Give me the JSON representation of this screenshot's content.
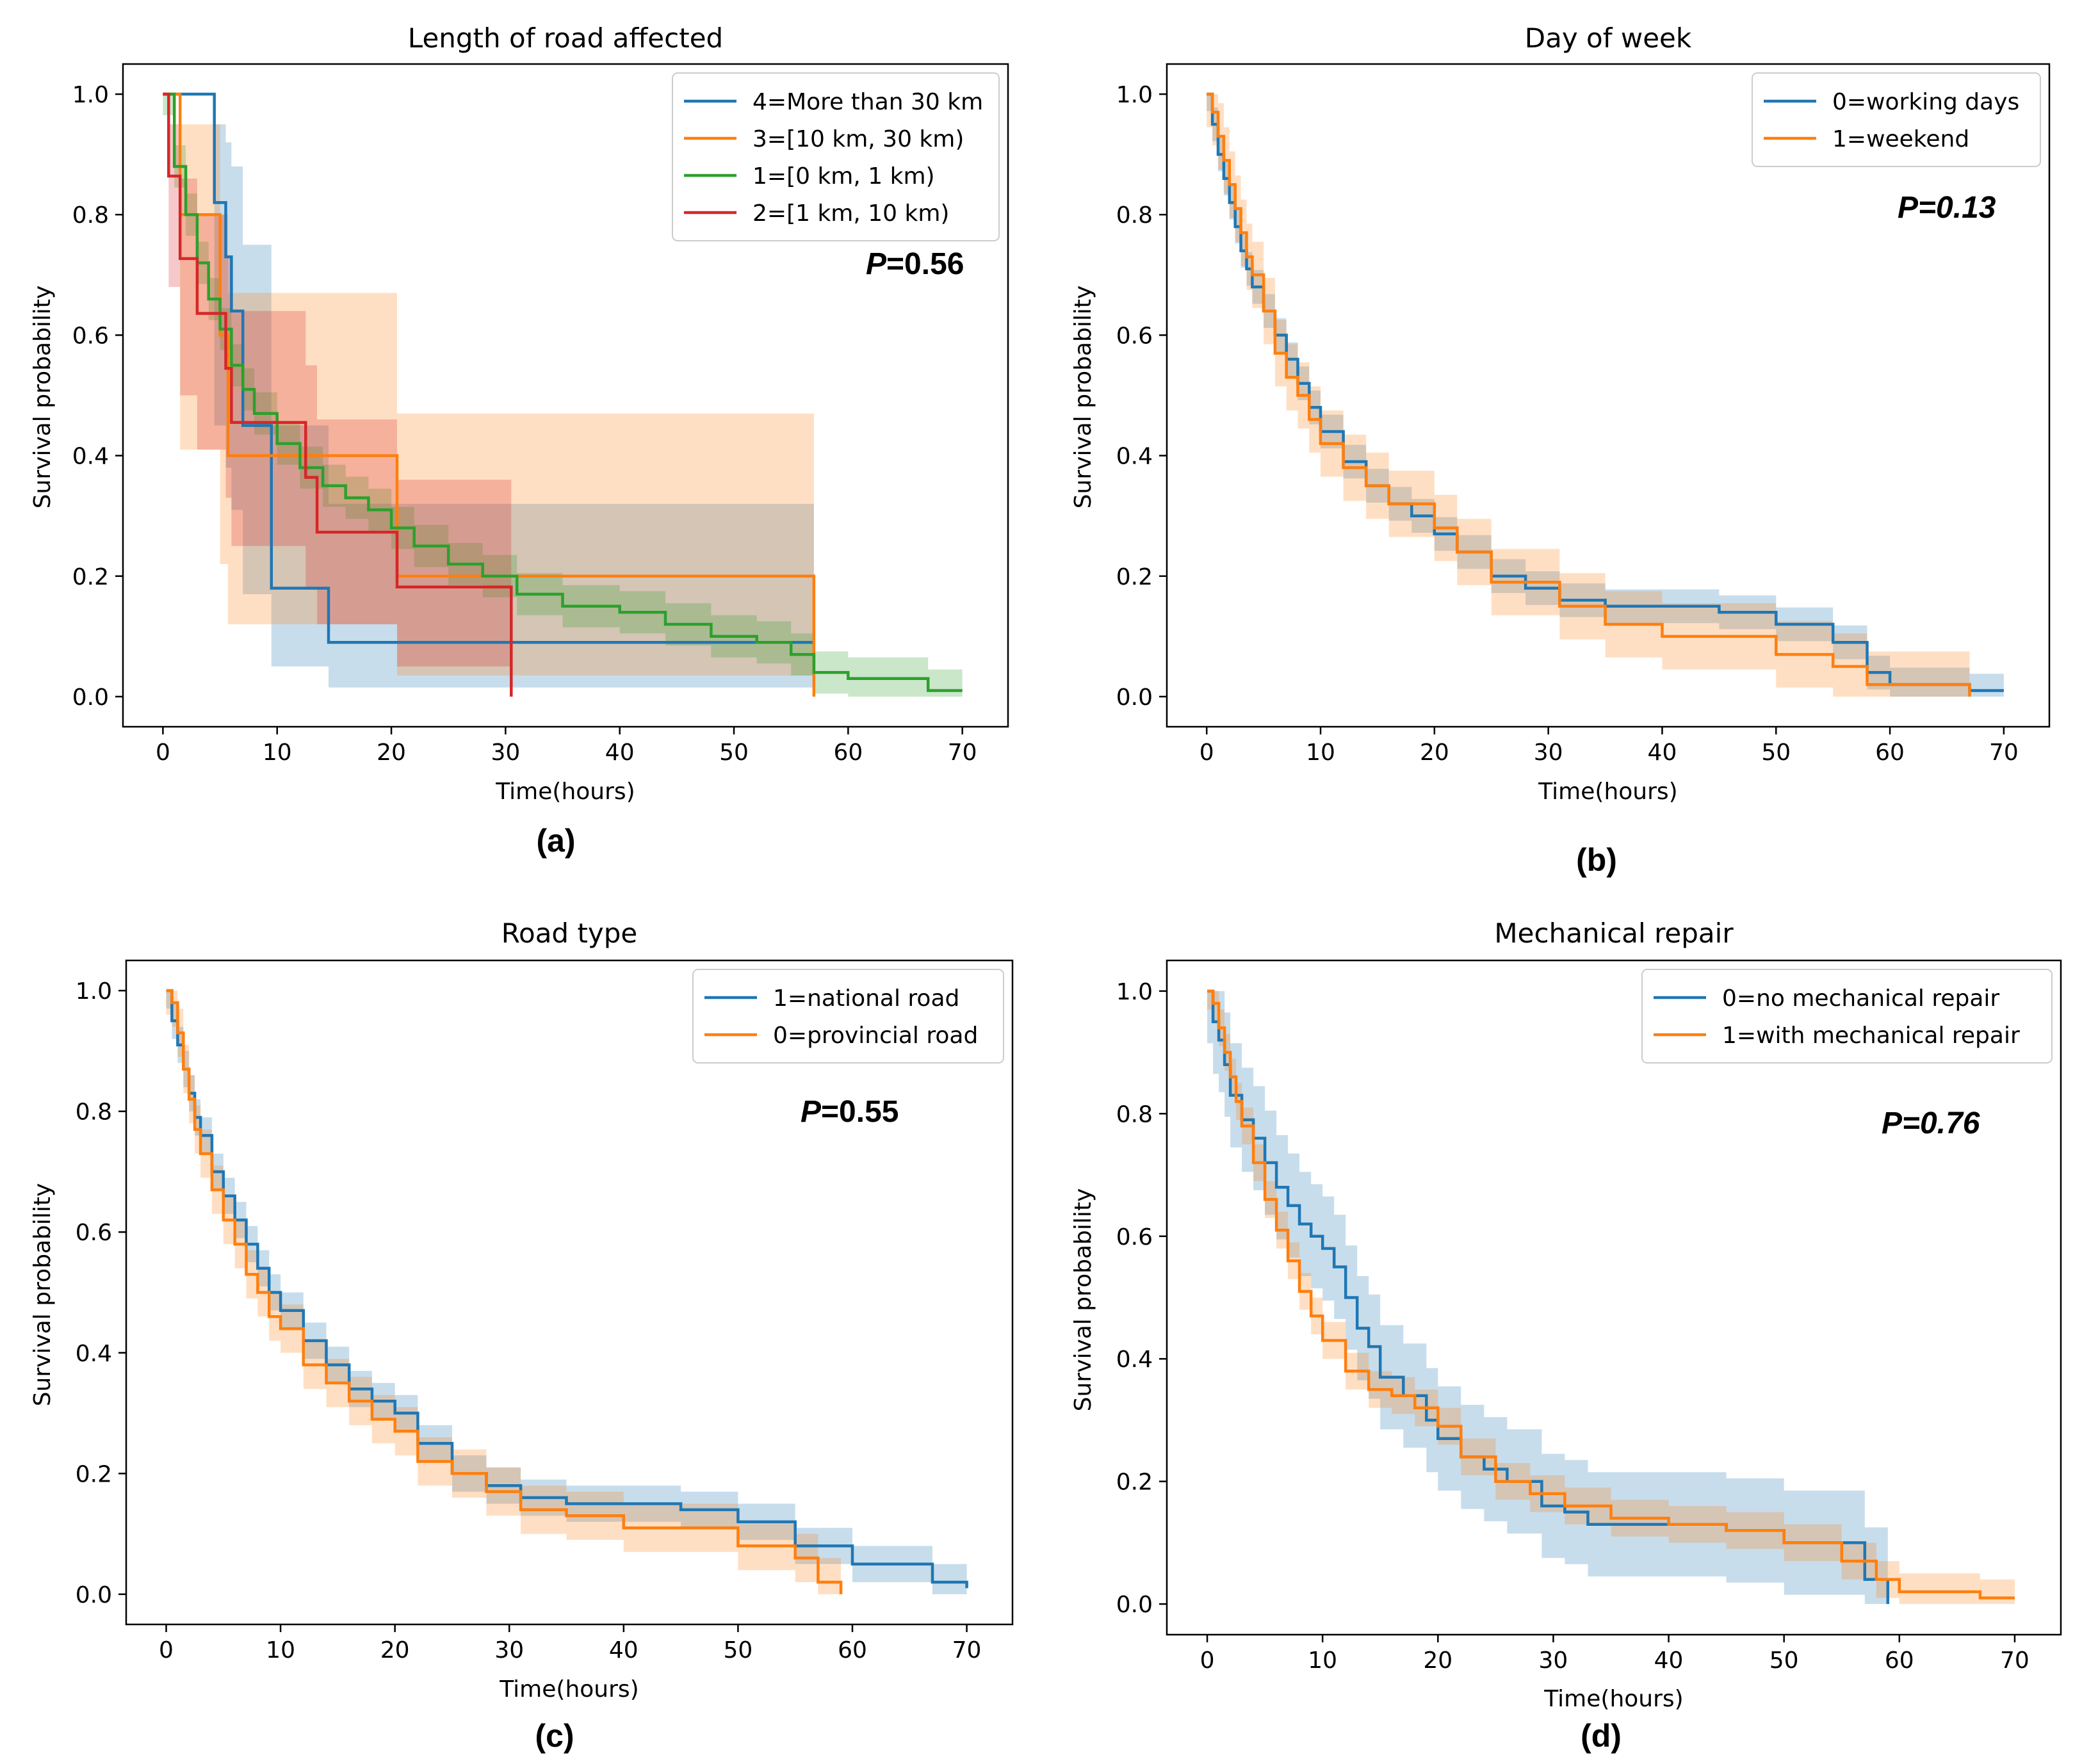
{
  "chart_data": [
    {
      "type": "line",
      "panel": "(a)",
      "title": "Length of road affected",
      "xlabel": "Time(hours)",
      "ylabel": "Survival probability",
      "xlim": [
        -3.5,
        74
      ],
      "ylim": [
        -0.05,
        1.05
      ],
      "xticks": [
        0,
        10,
        20,
        30,
        40,
        50,
        60,
        70
      ],
      "yticks": [
        0.0,
        0.2,
        0.4,
        0.6,
        0.8,
        1.0
      ],
      "xtick_labels": [
        "0",
        "10",
        "20",
        "30",
        "40",
        "50",
        "60",
        "70"
      ],
      "ytick_labels": [
        "0.0",
        "0.2",
        "0.4",
        "0.6",
        "0.8",
        "1.0"
      ],
      "p_symbol": "P",
      "p_value": "=0.56",
      "legend_position": "top-right",
      "series": [
        {
          "name": "4=More than 30 km",
          "color": "#1f77b4",
          "t": [
            0,
            4.5,
            4.5,
            5.5,
            5.5,
            6,
            6,
            7,
            7,
            9.5,
            9.5,
            14.5,
            14.5,
            57
          ],
          "s": [
            1.0,
            1.0,
            0.82,
            0.82,
            0.73,
            0.73,
            0.64,
            0.64,
            0.45,
            0.45,
            0.18,
            0.18,
            0.09,
            0.09
          ],
          "ci_t": [
            0,
            4.5,
            4.5,
            5.5,
            5.5,
            6,
            6,
            7,
            7,
            9.5,
            9.5,
            14.5,
            14.5,
            57
          ],
          "ci_low": [
            1.0,
            1.0,
            0.45,
            0.45,
            0.38,
            0.38,
            0.31,
            0.31,
            0.17,
            0.17,
            0.05,
            0.05,
            0.015,
            0.015
          ],
          "ci_high": [
            1.0,
            1.0,
            0.95,
            0.95,
            0.92,
            0.92,
            0.88,
            0.88,
            0.75,
            0.75,
            0.45,
            0.45,
            0.32,
            0.32
          ]
        },
        {
          "name": "3=[10 km, 30 km)",
          "color": "#ff7f0e",
          "t": [
            0,
            1.5,
            1.5,
            5,
            5,
            5.7,
            5.7,
            20.5,
            20.5,
            57,
            57
          ],
          "s": [
            1.0,
            1.0,
            0.8,
            0.8,
            0.6,
            0.6,
            0.4,
            0.4,
            0.2,
            0.2,
            0.0
          ],
          "ci_t": [
            0,
            1.5,
            1.5,
            5,
            5,
            5.7,
            5.7,
            20.5,
            20.5,
            57
          ],
          "ci_low": [
            1.0,
            1.0,
            0.41,
            0.41,
            0.22,
            0.22,
            0.12,
            0.12,
            0.035,
            0.035
          ],
          "ci_high": [
            1.0,
            1.0,
            0.95,
            0.95,
            0.8,
            0.8,
            0.67,
            0.67,
            0.47,
            0.47
          ]
        },
        {
          "name": "1=[0 km, 1 km)",
          "color": "#2ca02c",
          "t": [
            0,
            1,
            2,
            3,
            4,
            5,
            6,
            7,
            8,
            10,
            12,
            14,
            16,
            18,
            20,
            22,
            25,
            28,
            31,
            35,
            40,
            44,
            48,
            52,
            55,
            57,
            60,
            63,
            67,
            70
          ],
          "s": [
            1.0,
            0.88,
            0.8,
            0.72,
            0.66,
            0.61,
            0.55,
            0.51,
            0.47,
            0.42,
            0.38,
            0.35,
            0.33,
            0.31,
            0.28,
            0.25,
            0.22,
            0.2,
            0.17,
            0.15,
            0.14,
            0.12,
            0.1,
            0.09,
            0.07,
            0.04,
            0.03,
            0.03,
            0.01,
            0.01
          ],
          "band": 0.035
        },
        {
          "name": "2=[1 km, 10 km)",
          "color": "#d62728",
          "t": [
            0,
            0.5,
            0.5,
            1.5,
            1.5,
            3,
            3,
            5.5,
            5.5,
            6,
            6,
            12.5,
            12.5,
            13.5,
            13.5,
            20.5,
            20.5,
            30.5,
            30.5
          ],
          "s": [
            1.0,
            1.0,
            0.864,
            0.864,
            0.727,
            0.727,
            0.636,
            0.636,
            0.545,
            0.545,
            0.455,
            0.455,
            0.364,
            0.364,
            0.273,
            0.273,
            0.182,
            0.182,
            0.0
          ],
          "ci_t": [
            0,
            0.5,
            0.5,
            1.5,
            1.5,
            3,
            3,
            5.5,
            5.5,
            6,
            6,
            12.5,
            12.5,
            13.5,
            13.5,
            20.5,
            20.5,
            30.5
          ],
          "ci_low": [
            1.0,
            1.0,
            0.68,
            0.68,
            0.5,
            0.5,
            0.41,
            0.41,
            0.33,
            0.33,
            0.25,
            0.25,
            0.18,
            0.18,
            0.12,
            0.12,
            0.05,
            0.05
          ],
          "ci_high": [
            1.0,
            1.0,
            0.95,
            0.95,
            0.86,
            0.86,
            0.8,
            0.8,
            0.73,
            0.73,
            0.64,
            0.64,
            0.55,
            0.55,
            0.46,
            0.46,
            0.36,
            0.36
          ]
        }
      ]
    },
    {
      "type": "line",
      "panel": "(b)",
      "title": "Day of week",
      "xlabel": "Time(hours)",
      "ylabel": "Survival probability",
      "xlim": [
        -3.5,
        74
      ],
      "ylim": [
        -0.05,
        1.05
      ],
      "xticks": [
        0,
        10,
        20,
        30,
        40,
        50,
        60,
        70
      ],
      "yticks": [
        0.0,
        0.2,
        0.4,
        0.6,
        0.8,
        1.0
      ],
      "xtick_labels": [
        "0",
        "10",
        "20",
        "30",
        "40",
        "50",
        "60",
        "70"
      ],
      "ytick_labels": [
        "0.0",
        "0.2",
        "0.4",
        "0.6",
        "0.8",
        "1.0"
      ],
      "p_symbol": "P",
      "p_value": "=0.13",
      "legend_position": "top-right",
      "series": [
        {
          "name": "0=working days",
          "color": "#1f77b4",
          "t": [
            0,
            0.5,
            1,
            1.5,
            2,
            2.5,
            3,
            3.5,
            4,
            5,
            6,
            7,
            8,
            9,
            10,
            12,
            14,
            16,
            18,
            20,
            22,
            25,
            28,
            31,
            35,
            40,
            45,
            50,
            55,
            58,
            60,
            67,
            70
          ],
          "s": [
            1.0,
            0.95,
            0.9,
            0.86,
            0.82,
            0.78,
            0.74,
            0.71,
            0.68,
            0.64,
            0.6,
            0.56,
            0.52,
            0.48,
            0.44,
            0.39,
            0.35,
            0.32,
            0.3,
            0.27,
            0.24,
            0.2,
            0.18,
            0.16,
            0.15,
            0.15,
            0.14,
            0.12,
            0.09,
            0.04,
            0.02,
            0.01,
            0.01
          ],
          "band": 0.028
        },
        {
          "name": "1=weekend",
          "color": "#ff7f0e",
          "t": [
            0,
            0.5,
            1,
            1.5,
            2,
            2.5,
            3,
            3.5,
            4,
            5,
            6,
            7,
            8,
            9,
            10,
            12,
            14,
            16,
            18,
            20,
            22,
            25,
            28,
            31,
            35,
            40,
            45,
            50,
            55,
            58,
            60,
            67
          ],
          "s": [
            1.0,
            0.97,
            0.93,
            0.89,
            0.85,
            0.81,
            0.77,
            0.73,
            0.7,
            0.64,
            0.57,
            0.53,
            0.5,
            0.46,
            0.42,
            0.38,
            0.35,
            0.32,
            0.32,
            0.28,
            0.24,
            0.19,
            0.19,
            0.15,
            0.12,
            0.1,
            0.1,
            0.07,
            0.05,
            0.02,
            0.02,
            0.0
          ],
          "band": 0.055
        }
      ]
    },
    {
      "type": "line",
      "panel": "(c)",
      "title": "Road type",
      "xlabel": "Time(hours)",
      "ylabel": "Survival probability",
      "xlim": [
        -3.5,
        74
      ],
      "ylim": [
        -0.05,
        1.05
      ],
      "xticks": [
        0,
        10,
        20,
        30,
        40,
        50,
        60,
        70
      ],
      "yticks": [
        0.0,
        0.2,
        0.4,
        0.6,
        0.8,
        1.0
      ],
      "xtick_labels": [
        "0",
        "10",
        "20",
        "30",
        "40",
        "50",
        "60",
        "70"
      ],
      "ytick_labels": [
        "0.0",
        "0.2",
        "0.4",
        "0.6",
        "0.8",
        "1.0"
      ],
      "p_symbol": "P",
      "p_value": "=0.55",
      "legend_position": "top-right",
      "series": [
        {
          "name": "1=national road",
          "color": "#1f77b4",
          "t": [
            0,
            0.5,
            1,
            1.5,
            2,
            2.5,
            3,
            4,
            5,
            6,
            7,
            8,
            9,
            10,
            12,
            14,
            16,
            18,
            20,
            22,
            25,
            28,
            31,
            35,
            40,
            45,
            50,
            55,
            60,
            67,
            70
          ],
          "s": [
            1.0,
            0.95,
            0.91,
            0.87,
            0.83,
            0.79,
            0.76,
            0.7,
            0.66,
            0.62,
            0.58,
            0.54,
            0.5,
            0.47,
            0.42,
            0.38,
            0.34,
            0.32,
            0.3,
            0.25,
            0.2,
            0.18,
            0.16,
            0.15,
            0.15,
            0.14,
            0.12,
            0.08,
            0.05,
            0.02,
            0.01
          ],
          "band": 0.03
        },
        {
          "name": "0=provincial road",
          "color": "#ff7f0e",
          "t": [
            0,
            0.5,
            1,
            1.5,
            2,
            2.5,
            3,
            4,
            5,
            6,
            7,
            8,
            9,
            10,
            12,
            14,
            16,
            18,
            20,
            22,
            25,
            28,
            31,
            35,
            40,
            45,
            50,
            55,
            57,
            59
          ],
          "s": [
            1.0,
            0.98,
            0.93,
            0.87,
            0.82,
            0.77,
            0.73,
            0.67,
            0.62,
            0.58,
            0.53,
            0.5,
            0.46,
            0.44,
            0.38,
            0.35,
            0.32,
            0.29,
            0.27,
            0.22,
            0.2,
            0.17,
            0.14,
            0.13,
            0.11,
            0.11,
            0.08,
            0.06,
            0.02,
            0.0
          ],
          "band": 0.04
        }
      ]
    },
    {
      "type": "line",
      "panel": "(d)",
      "title": "Mechanical repair",
      "xlabel": "Time(hours)",
      "ylabel": "Survival probability",
      "xlim": [
        -3.5,
        74
      ],
      "ylim": [
        -0.05,
        1.05
      ],
      "xticks": [
        0,
        10,
        20,
        30,
        40,
        50,
        60,
        70
      ],
      "yticks": [
        0.0,
        0.2,
        0.4,
        0.6,
        0.8,
        1.0
      ],
      "xtick_labels": [
        "0",
        "10",
        "20",
        "30",
        "40",
        "50",
        "60",
        "70"
      ],
      "ytick_labels": [
        "0.0",
        "0.2",
        "0.4",
        "0.6",
        "0.8",
        "1.0"
      ],
      "p_symbol": "P",
      "p_value": "=0.76",
      "legend_position": "top-right",
      "series": [
        {
          "name": "0=no mechanical repair",
          "color": "#1f77b4",
          "t": [
            0,
            0.5,
            1,
            1.5,
            2,
            3,
            4,
            5,
            6,
            7,
            8,
            9,
            10,
            11,
            12,
            13,
            14,
            15,
            17,
            19,
            20,
            22,
            24,
            26,
            29,
            31,
            33,
            38,
            45,
            50,
            55,
            57,
            59
          ],
          "s": [
            1.0,
            0.95,
            0.92,
            0.88,
            0.83,
            0.79,
            0.76,
            0.72,
            0.68,
            0.65,
            0.62,
            0.6,
            0.58,
            0.55,
            0.5,
            0.45,
            0.42,
            0.37,
            0.34,
            0.3,
            0.27,
            0.24,
            0.22,
            0.2,
            0.16,
            0.15,
            0.13,
            0.13,
            0.12,
            0.1,
            0.1,
            0.04,
            0.0
          ],
          "band": 0.085
        },
        {
          "name": "1=with mechanical repair",
          "color": "#ff7f0e",
          "t": [
            0,
            0.5,
            1,
            1.5,
            2,
            2.5,
            3,
            4,
            5,
            6,
            7,
            8,
            9,
            10,
            12,
            14,
            16,
            18,
            20,
            22,
            25,
            28,
            31,
            35,
            40,
            45,
            50,
            55,
            58,
            60,
            67,
            70
          ],
          "s": [
            1.0,
            0.98,
            0.94,
            0.9,
            0.86,
            0.82,
            0.78,
            0.72,
            0.66,
            0.61,
            0.56,
            0.51,
            0.47,
            0.43,
            0.38,
            0.35,
            0.34,
            0.32,
            0.29,
            0.24,
            0.2,
            0.18,
            0.16,
            0.14,
            0.13,
            0.12,
            0.1,
            0.07,
            0.04,
            0.02,
            0.01,
            0.01
          ],
          "band": 0.03
        }
      ]
    }
  ]
}
